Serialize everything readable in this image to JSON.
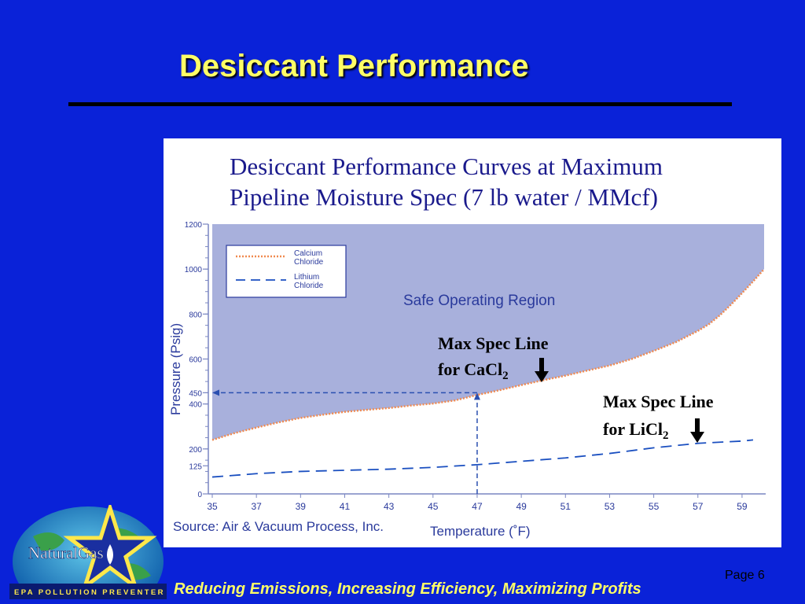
{
  "slide": {
    "title": "Desiccant Performance",
    "footer": "Reducing Emissions, Increasing Efficiency, Maximizing Profits",
    "page": "Page 6",
    "logo_text": "NaturalGas",
    "logo_tagline": "EPA POLLUTION PREVENTER"
  },
  "chart_data": {
    "type": "line",
    "title_lines": [
      "Desiccant Performance Curves at Maximum",
      "Pipeline Moisture Spec (7 lb water / MMcf)"
    ],
    "xlabel": "Temperature (˚F)",
    "ylabel": "Pressure (Psig)",
    "source": "Source: Air & Vacuum Process, Inc.",
    "x_ticks": [
      35,
      37,
      39,
      41,
      43,
      45,
      47,
      49,
      51,
      53,
      55,
      57,
      59
    ],
    "y_ticks": [
      0,
      125,
      200,
      400,
      450,
      600,
      800,
      1000,
      1200
    ],
    "xlim": [
      35,
      60
    ],
    "ylim": [
      0,
      1200
    ],
    "grid": false,
    "legend_position": "top-left",
    "region_label": "Safe Operating Region",
    "series": [
      {
        "name": "Calcium Chloride",
        "color": "#f08a50",
        "style": "dotted",
        "x": [
          35,
          36,
          37,
          38,
          39,
          40,
          41,
          42,
          43,
          44,
          45,
          46,
          47,
          48,
          49,
          50,
          51,
          52,
          53,
          54,
          55,
          56,
          57,
          57.5,
          58,
          58.5,
          59,
          59.5,
          60
        ],
        "y": [
          240,
          270,
          295,
          318,
          338,
          352,
          365,
          374,
          382,
          393,
          402,
          416,
          440,
          461,
          484,
          506,
          526,
          549,
          571,
          600,
          636,
          675,
          725,
          755,
          795,
          842,
          893,
          945,
          1000
        ]
      },
      {
        "name": "Lithium Chloride",
        "color": "#1a4fc0",
        "style": "dashed",
        "x": [
          35,
          37,
          39,
          41,
          43,
          45,
          47,
          49,
          51,
          53,
          55,
          57,
          59,
          59.5
        ],
        "y": [
          75,
          90,
          100,
          105,
          110,
          118,
          130,
          145,
          160,
          180,
          205,
          225,
          235,
          240
        ]
      }
    ],
    "reference": {
      "x": 47,
      "y": 450
    },
    "annotations": [
      {
        "line1": "Max Spec Line",
        "line2": "for CaCl",
        "sub": "2"
      },
      {
        "line1": "Max Spec Line",
        "line2": "for LiCl",
        "sub": "2"
      }
    ]
  }
}
